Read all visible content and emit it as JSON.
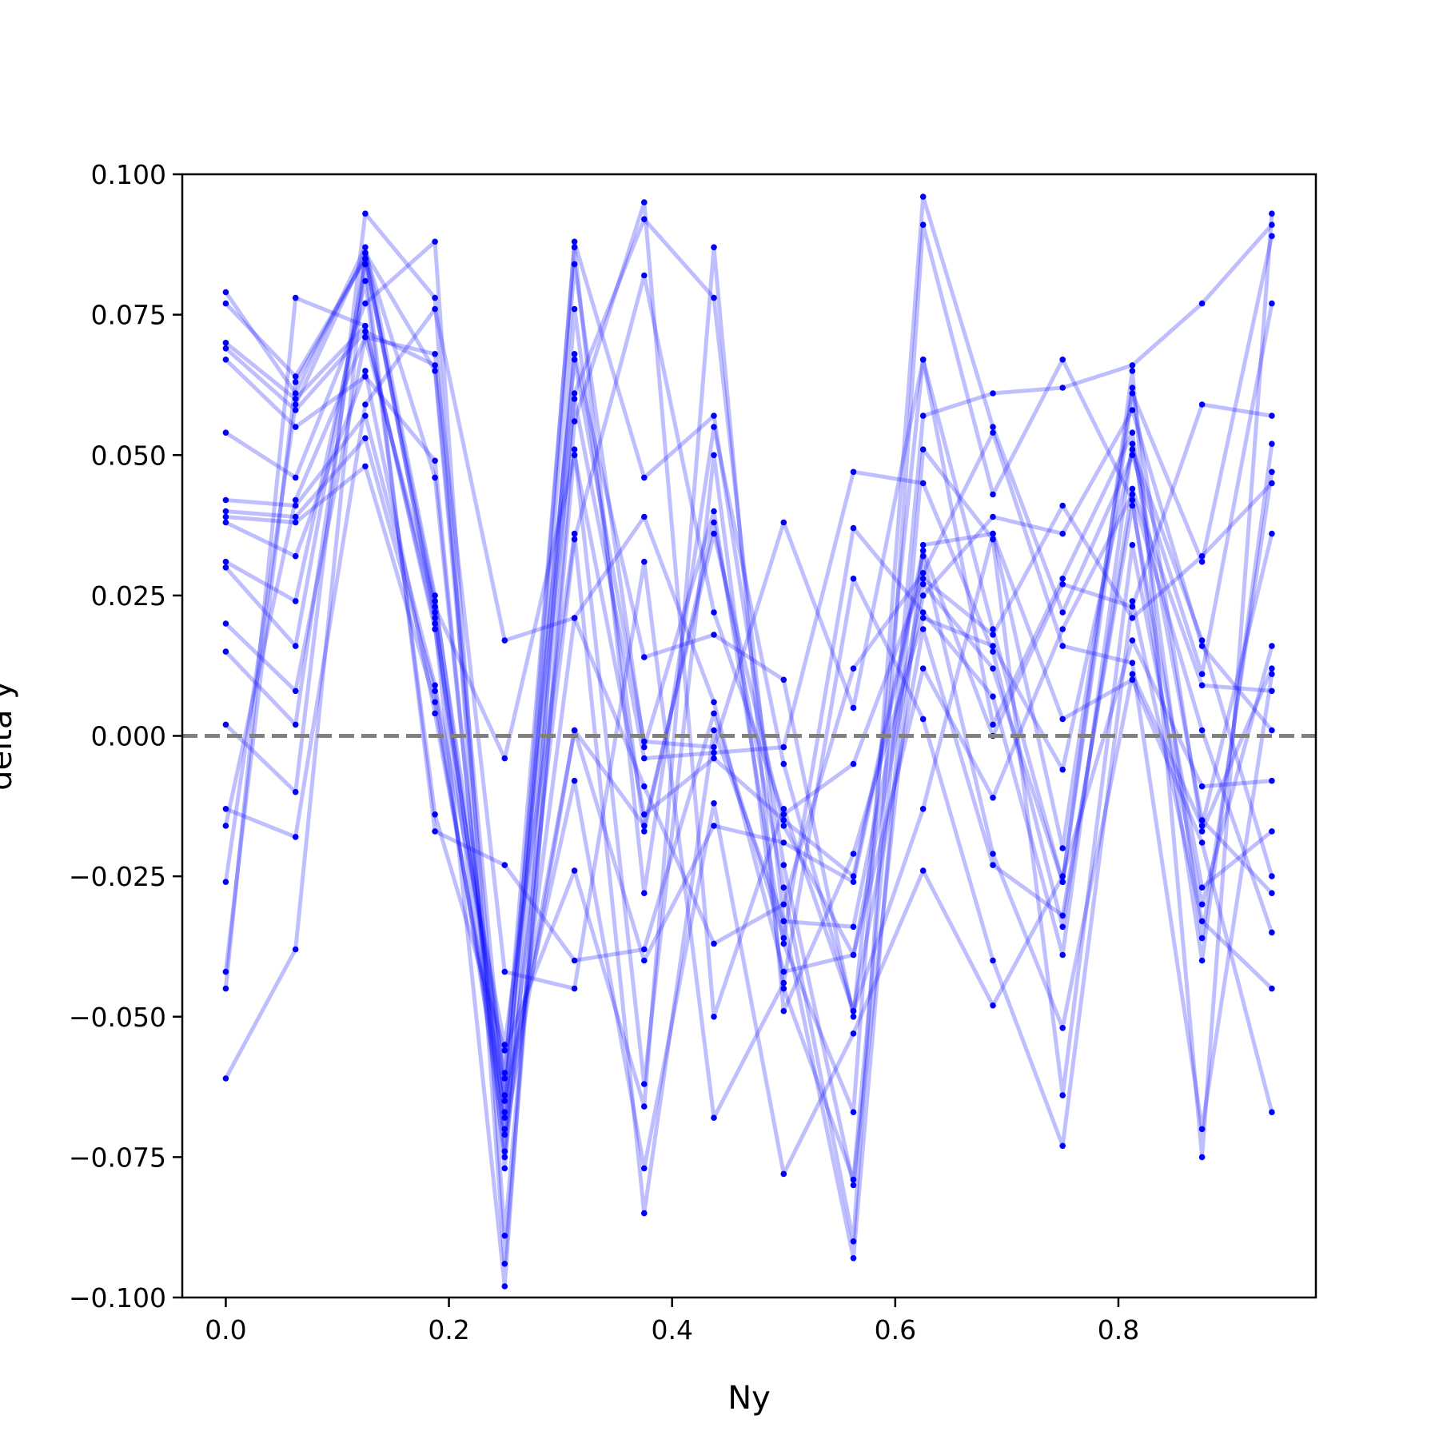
{
  "chart_data": {
    "type": "line",
    "title": "",
    "xlabel": "Ny",
    "ylabel": "delta y",
    "xlim": [
      -0.039,
      0.977
    ],
    "ylim": [
      -0.1,
      0.1
    ],
    "xticks": [
      {
        "value": 0.0,
        "label": "0.0"
      },
      {
        "value": 0.2,
        "label": "0.2"
      },
      {
        "value": 0.4,
        "label": "0.4"
      },
      {
        "value": 0.6,
        "label": "0.6"
      },
      {
        "value": 0.8,
        "label": "0.8"
      }
    ],
    "yticks": [
      {
        "value": 0.1,
        "label": "0.100"
      },
      {
        "value": 0.075,
        "label": "0.075"
      },
      {
        "value": 0.05,
        "label": "0.050"
      },
      {
        "value": 0.025,
        "label": "0.025"
      },
      {
        "value": 0.0,
        "label": "0.000"
      },
      {
        "value": -0.025,
        "label": "−0.025"
      },
      {
        "value": -0.05,
        "label": "−0.050"
      },
      {
        "value": -0.075,
        "label": "−0.075"
      },
      {
        "value": -0.1,
        "label": "−0.100"
      }
    ],
    "grid": false,
    "legend": "none",
    "reference_line": {
      "y": 0.0,
      "style": "dashed",
      "color": "#808080"
    },
    "series_color": "#0000ff",
    "x": [
      0.0,
      0.0625,
      0.125,
      0.1875,
      0.25,
      0.3125,
      0.375,
      0.4375,
      0.5,
      0.5625,
      0.625,
      0.6875,
      0.75,
      0.8125,
      0.875,
      0.9375
    ],
    "series": [
      {
        "values": [
          0.079,
          0.061,
          0.087,
          0.025,
          -0.068,
          0.088,
          0.046,
          0.057,
          -0.023,
          -0.08,
          0.034,
          0.036,
          -0.02,
          0.062,
          -0.017,
          0.012
        ]
      },
      {
        "values": [
          0.077,
          0.064,
          0.085,
          0.022,
          -0.075,
          0.084,
          -0.002,
          0.04,
          -0.037,
          -0.067,
          0.096,
          0.055,
          0.022,
          0.05,
          0.011,
          0.077
        ]
      },
      {
        "values": [
          0.07,
          0.06,
          0.073,
          0.02,
          -0.098,
          0.076,
          -0.017,
          0.038,
          -0.027,
          -0.09,
          0.091,
          0.043,
          0.067,
          0.042,
          -0.04,
          0.052
        ]
      },
      {
        "values": [
          0.069,
          0.058,
          0.072,
          0.066,
          -0.065,
          0.068,
          0.014,
          0.018,
          0.01,
          -0.05,
          0.067,
          0.002,
          0.028,
          0.054,
          -0.036,
          0.047
        ]
      },
      {
        "values": [
          0.067,
          0.055,
          0.064,
          0.049,
          -0.077,
          0.061,
          0.092,
          0.078,
          -0.033,
          -0.093,
          0.051,
          0.035,
          -0.064,
          0.034,
          -0.03,
          0.016
        ]
      },
      {
        "values": [
          0.054,
          0.046,
          0.077,
          0.088,
          -0.089,
          0.051,
          -0.062,
          0.05,
          -0.045,
          -0.079,
          0.057,
          0.061,
          0.062,
          0.066,
          0.077,
          0.091
        ]
      },
      {
        "values": [
          0.042,
          0.041,
          0.057,
          0.009,
          -0.055,
          0.036,
          -0.085,
          0.001,
          -0.033,
          -0.034,
          0.027,
          0.012,
          -0.026,
          0.065,
          -0.075,
          0.093
        ]
      },
      {
        "values": [
          0.04,
          0.039,
          0.053,
          0.008,
          -0.07,
          0.035,
          0.082,
          0.022,
          -0.014,
          -0.005,
          0.028,
          0.018,
          0.041,
          0.021,
          0.032,
          0.045
        ]
      },
      {
        "values": [
          0.039,
          0.038,
          0.048,
          0.006,
          -0.067,
          0.001,
          -0.04,
          -0.016,
          -0.019,
          -0.026,
          0.032,
          -0.021,
          -0.052,
          0.011,
          -0.016,
          0.036
        ]
      },
      {
        "values": [
          0.038,
          0.032,
          0.065,
          0.004,
          -0.064,
          -0.008,
          -0.077,
          -0.012,
          -0.078,
          -0.053,
          -0.024,
          -0.048,
          -0.025,
          0.017,
          -0.009,
          -0.008
        ]
      },
      {
        "values": [
          0.031,
          0.024,
          0.081,
          -0.014,
          -0.056,
          -0.024,
          -0.066,
          0.087,
          -0.049,
          -0.021,
          0.021,
          0.016,
          -0.006,
          0.051,
          0.017,
          -0.025
        ]
      },
      {
        "values": [
          0.03,
          0.016,
          0.084,
          -0.017,
          -0.023,
          -0.04,
          -0.038,
          0.004,
          -0.036,
          0.037,
          0.022,
          0.007,
          -0.039,
          0.052,
          -0.015,
          -0.028
        ]
      },
      {
        "values": [
          0.02,
          0.008,
          0.071,
          0.068,
          -0.042,
          -0.045,
          0.031,
          -0.068,
          -0.044,
          0.028,
          0.003,
          -0.04,
          -0.073,
          0.024,
          -0.033,
          -0.045
        ]
      },
      {
        "values": [
          0.015,
          0.002,
          0.086,
          0.046,
          -0.074,
          0.021,
          0.039,
          0.006,
          -0.042,
          -0.039,
          0.012,
          -0.011,
          0.019,
          0.043,
          0.001,
          -0.035
        ]
      },
      {
        "values": [
          0.002,
          -0.01,
          0.093,
          0.078,
          -0.094,
          0.056,
          0.095,
          -0.05,
          -0.013,
          -0.049,
          -0.013,
          0.036,
          0.003,
          0.01,
          -0.019,
          -0.067
        ]
      },
      {
        "values": [
          -0.013,
          -0.018,
          0.059,
          0.076,
          0.017,
          0.021,
          -0.009,
          -0.037,
          -0.03,
          0.012,
          0.029,
          0.054,
          0.016,
          0.013,
          -0.07,
          0.011
        ]
      },
      {
        "values": [
          -0.016,
          0.042,
          0.071,
          0.023,
          -0.004,
          0.05,
          -0.014,
          -0.004,
          -0.015,
          -0.025,
          0.033,
          0.0,
          0.027,
          0.023,
          0.059,
          0.057
        ]
      },
      {
        "values": [
          -0.026,
          0.059,
          0.086,
          0.021,
          -0.064,
          0.06,
          -0.004,
          -0.003,
          -0.002,
          0.047,
          0.045,
          0.015,
          -0.034,
          0.044,
          0.009,
          0.008
        ]
      },
      {
        "values": [
          -0.042,
          0.063,
          0.085,
          0.024,
          -0.06,
          0.067,
          -0.001,
          -0.002,
          0.038,
          0.005,
          0.067,
          0.019,
          -0.026,
          0.061,
          0.031,
          0.089
        ]
      },
      {
        "values": [
          -0.045,
          0.078,
          0.073,
          0.019,
          -0.061,
          0.087,
          -0.028,
          0.055,
          -0.005,
          -0.049,
          0.019,
          -0.023,
          -0.032,
          0.041,
          -0.027,
          -0.017
        ]
      },
      {
        "values": [
          -0.061,
          -0.038,
          0.086,
          0.065,
          -0.071,
          0.001,
          -0.016,
          0.036,
          -0.016,
          -0.039,
          0.025,
          0.039,
          0.036,
          0.058,
          0.016,
          0.001
        ]
      }
    ]
  }
}
